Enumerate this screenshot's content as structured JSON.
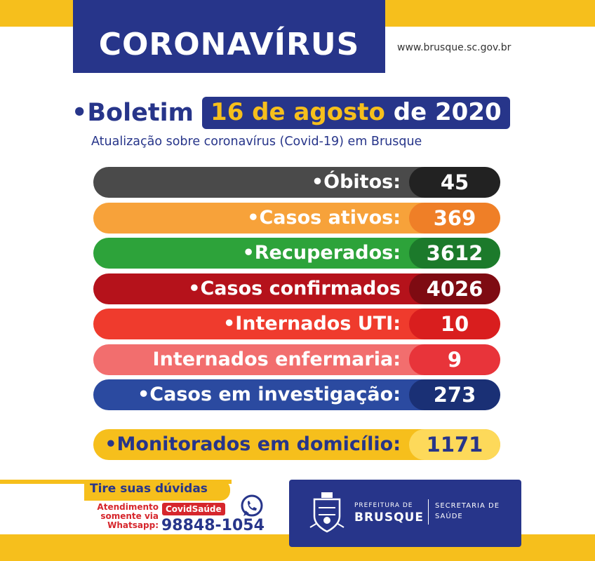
{
  "header": {
    "title": "CORONAVÍRUS",
    "website": "www.brusque.sc.gov.br"
  },
  "bulletin": {
    "bullet": "•",
    "label": "Boletim",
    "date_highlight": "16 de agosto",
    "date_rest": "de 2020",
    "subtitle": "Atualização sobre coronavírus (Covid-19) em Brusque"
  },
  "stats": [
    {
      "label": "•Óbitos:",
      "value": "45",
      "color": "#4a4a4a",
      "value_color": "#222222"
    },
    {
      "label": "•Casos ativos:",
      "value": "369",
      "color": "#f7a23a",
      "value_color": "#ef7f27"
    },
    {
      "label": "•Recuperados:",
      "value": "3612",
      "color": "#2da33a",
      "value_color": "#1c7a2b"
    },
    {
      "label": "•Casos confirmados",
      "value": "4026",
      "color": "#b5121b",
      "value_color": "#7e0b12"
    },
    {
      "label": "•Internados UTI:",
      "value": "10",
      "color": "#ef3b2d",
      "value_color": "#d91e1e"
    },
    {
      "label": "Internados enfermaria:",
      "value": "9",
      "color": "#f26e6e",
      "value_color": "#e8343a"
    },
    {
      "label": "•Casos em investigação:",
      "value": "273",
      "color": "#2b4aa0",
      "value_color": "#1a3075"
    }
  ],
  "monitored": {
    "label": "•Monitorados em domicílio:",
    "value": "1171",
    "color": "#f6bf1c",
    "value_color": "#fdd95a",
    "text_color": "#27358a"
  },
  "help": {
    "title": "Tire suas dúvidas",
    "line1": "Atendimento",
    "line2": "somente via",
    "line3": "Whatsapp:",
    "channel": "CovidSaúde",
    "phone": "98848-1054"
  },
  "prefeitura": {
    "small": "PREFEITURA DE",
    "big": "BRUSQUE",
    "sec1": "SECRETARIA DE",
    "sec2": "SAÚDE"
  },
  "colors": {
    "navy": "#27358a",
    "yellow": "#f6bf1c",
    "red": "#d6262c"
  }
}
